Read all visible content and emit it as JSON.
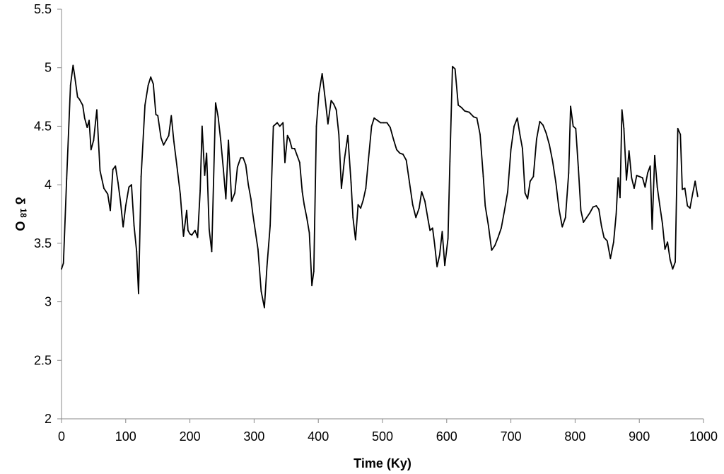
{
  "chart_data": {
    "type": "line",
    "title": "",
    "xlabel": "Time (Ky)",
    "ylabel_base": "δ",
    "ylabel_sup": "18",
    "ylabel_main": "O",
    "xlim": [
      0,
      1000
    ],
    "ylim": [
      2,
      5.5
    ],
    "xticks": [
      0,
      100,
      200,
      300,
      400,
      500,
      600,
      700,
      800,
      900,
      1000
    ],
    "yticks": [
      2,
      2.5,
      3,
      3.5,
      4,
      4.5,
      5,
      5.5
    ],
    "ytick_labels": [
      "2",
      "2.5",
      "3",
      "3.5",
      "4",
      "4.5",
      "5",
      "5.5"
    ],
    "grid": false,
    "line_color": "#000000",
    "series": [
      {
        "x": [
          0,
          3,
          8,
          14,
          18,
          20,
          25,
          28,
          33,
          36,
          40,
          43,
          46,
          50,
          55,
          60,
          66,
          72,
          76,
          80,
          84,
          88,
          92,
          96,
          100,
          105,
          109,
          113,
          117,
          120,
          124,
          130,
          135,
          139,
          143,
          147,
          150,
          155,
          159,
          163,
          167,
          171,
          175,
          180,
          185,
          190,
          195,
          197,
          200,
          203,
          208,
          212,
          216,
          219,
          223,
          226,
          230,
          234,
          240,
          244,
          248,
          252,
          256,
          260,
          265,
          270,
          274,
          279,
          283,
          287,
          291,
          295,
          298,
          302,
          306,
          311,
          316,
          320,
          325,
          330,
          336,
          340,
          345,
          348,
          352,
          355,
          359,
          363,
          367,
          371,
          375,
          378,
          382,
          386,
          390,
          393,
          397,
          401,
          406,
          411,
          415,
          420,
          424,
          428,
          432,
          436,
          441,
          446,
          451,
          454,
          458,
          462,
          466,
          470,
          474,
          478,
          483,
          487,
          492,
          497,
          502,
          507,
          512,
          517,
          522,
          527,
          532,
          537,
          542,
          547,
          552,
          557,
          561,
          566,
          571,
          574,
          578,
          581,
          585,
          589,
          593,
          597,
          602,
          605,
          609,
          613,
          618,
          623,
          628,
          635,
          642,
          647,
          652,
          657,
          660,
          665,
          670,
          675,
          680,
          685,
          690,
          695,
          700,
          705,
          710,
          714,
          718,
          722,
          726,
          730,
          735,
          740,
          745,
          750,
          755,
          760,
          765,
          770,
          775,
          780,
          785,
          790,
          793,
          797,
          801,
          805,
          809,
          813,
          818,
          823,
          828,
          833,
          837,
          841,
          845,
          850,
          855,
          860,
          864,
          867,
          870,
          873,
          876,
          880,
          884,
          888,
          892,
          896,
          900,
          905,
          909,
          913,
          917,
          920,
          924,
          928,
          932,
          936,
          940,
          944,
          948,
          952,
          956,
          960,
          964,
          967,
          971,
          975,
          979,
          983,
          987,
          991
        ],
        "y": [
          3.28,
          3.33,
          4.05,
          4.85,
          5.02,
          4.95,
          4.75,
          4.73,
          4.68,
          4.57,
          4.49,
          4.55,
          4.3,
          4.38,
          4.64,
          4.12,
          3.97,
          3.92,
          3.78,
          4.13,
          4.16,
          4.02,
          3.85,
          3.64,
          3.82,
          3.98,
          4.0,
          3.65,
          3.43,
          3.07,
          4.07,
          4.68,
          4.85,
          4.92,
          4.86,
          4.6,
          4.59,
          4.4,
          4.34,
          4.38,
          4.42,
          4.59,
          4.37,
          4.15,
          3.92,
          3.56,
          3.78,
          3.61,
          3.58,
          3.57,
          3.61,
          3.55,
          3.95,
          4.5,
          4.08,
          4.27,
          3.62,
          3.43,
          4.7,
          4.58,
          4.38,
          4.14,
          3.88,
          4.38,
          3.86,
          3.93,
          4.15,
          4.23,
          4.23,
          4.17,
          4.0,
          3.88,
          3.75,
          3.6,
          3.45,
          3.09,
          2.95,
          3.3,
          3.65,
          4.5,
          4.53,
          4.5,
          4.53,
          4.19,
          4.42,
          4.39,
          4.31,
          4.31,
          4.25,
          4.19,
          3.94,
          3.83,
          3.72,
          3.59,
          3.14,
          3.26,
          4.5,
          4.78,
          4.95,
          4.72,
          4.52,
          4.72,
          4.69,
          4.64,
          4.43,
          3.97,
          4.23,
          4.42,
          4.02,
          3.72,
          3.53,
          3.83,
          3.8,
          3.87,
          3.97,
          4.21,
          4.5,
          4.57,
          4.55,
          4.53,
          4.53,
          4.53,
          4.49,
          4.39,
          4.3,
          4.27,
          4.26,
          4.21,
          4.02,
          3.83,
          3.72,
          3.8,
          3.94,
          3.86,
          3.7,
          3.61,
          3.63,
          3.5,
          3.3,
          3.4,
          3.6,
          3.31,
          3.54,
          4.2,
          5.01,
          4.99,
          4.68,
          4.66,
          4.63,
          4.62,
          4.58,
          4.57,
          4.43,
          4.07,
          3.82,
          3.65,
          3.44,
          3.48,
          3.55,
          3.63,
          3.78,
          3.94,
          4.3,
          4.5,
          4.57,
          4.43,
          4.31,
          3.93,
          3.88,
          4.03,
          4.07,
          4.39,
          4.54,
          4.51,
          4.44,
          4.34,
          4.2,
          4.02,
          3.79,
          3.64,
          3.72,
          4.1,
          4.67,
          4.5,
          4.48,
          4.15,
          3.78,
          3.68,
          3.72,
          3.76,
          3.81,
          3.82,
          3.79,
          3.65,
          3.55,
          3.52,
          3.37,
          3.51,
          3.75,
          4.06,
          3.89,
          4.64,
          4.48,
          4.04,
          4.29,
          4.06,
          3.97,
          4.08,
          4.07,
          4.06,
          3.98,
          4.1,
          4.16,
          3.62,
          4.25,
          3.98,
          3.82,
          3.67,
          3.45,
          3.51,
          3.36,
          3.28,
          3.34,
          4.48,
          4.43,
          3.96,
          3.97,
          3.82,
          3.8,
          3.92,
          4.03,
          3.9
        ]
      }
    ]
  }
}
